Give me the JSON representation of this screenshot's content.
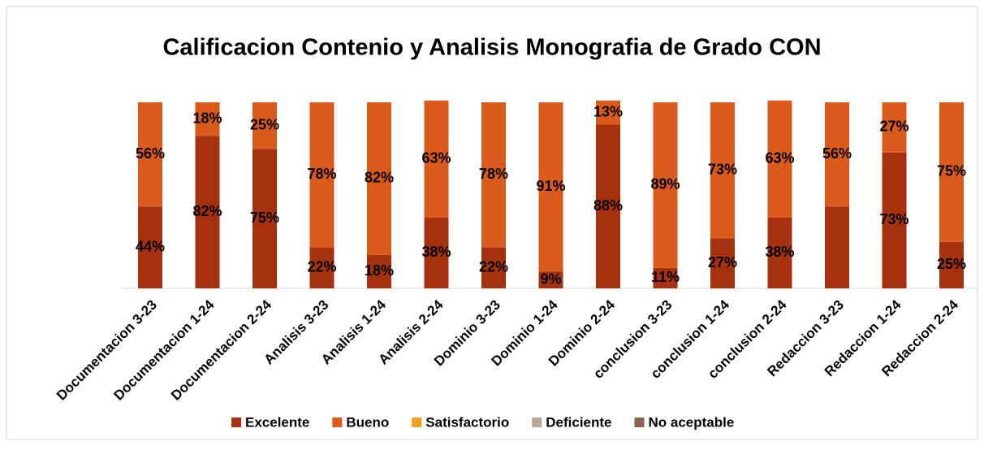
{
  "chart_data": {
    "type": "stacked_bar",
    "title": "Calificacion Contenio y Analisis Monografia de Grado CON",
    "categories": [
      "Documentacion 3-23",
      "Documentacion 1-24",
      "Documentacion 2-24",
      "Analisis 3-23",
      "Analisis 1-24",
      "Analisis 2-24",
      "Dominio 3-23",
      "Dominio 1-24",
      "Dominio 2-24",
      "conclusion 3-23",
      "conclusion 1-24",
      "conclusion 2-24",
      "Redaccion 3-23",
      "Redaccion 1-24",
      "Redaccion 2-24"
    ],
    "series": [
      {
        "name": "Excelente",
        "color": "#a5310f",
        "values": [
          44,
          82,
          75,
          22,
          18,
          38,
          22,
          9,
          88,
          11,
          27,
          38,
          44,
          73,
          25
        ],
        "value_labels": [
          "44%",
          "82%",
          "75%",
          "22%",
          "18%",
          "38%",
          "22%",
          "9%",
          "88%",
          "11%",
          "27%",
          "38%",
          null,
          "73%",
          "25%"
        ]
      },
      {
        "name": "Bueno",
        "color": "#d95a1b",
        "values": [
          56,
          18,
          25,
          78,
          82,
          63,
          78,
          91,
          13,
          89,
          73,
          63,
          56,
          27,
          75
        ],
        "value_labels": [
          "56%",
          "18%",
          "25%",
          "78%",
          "82%",
          "63%",
          "78%",
          "91%",
          "13%",
          "89%",
          "73%",
          "63%",
          "56%",
          "27%",
          "75%"
        ]
      },
      {
        "name": "Satisfactorio",
        "color": "#e8a21f",
        "values": [
          0,
          0,
          0,
          0,
          0,
          0,
          0,
          0,
          0,
          0,
          0,
          0,
          0,
          0,
          0
        ]
      },
      {
        "name": "Deficiente",
        "color": "#b9aa98",
        "values": [
          0,
          0,
          0,
          0,
          0,
          0,
          0,
          0,
          0,
          0,
          0,
          0,
          0,
          0,
          0
        ]
      },
      {
        "name": "No aceptable",
        "color": "#8b6152",
        "values": [
          0,
          0,
          0,
          0,
          0,
          0,
          0,
          0,
          0,
          0,
          0,
          0,
          0,
          0,
          0
        ]
      }
    ],
    "legend": "bottom"
  }
}
